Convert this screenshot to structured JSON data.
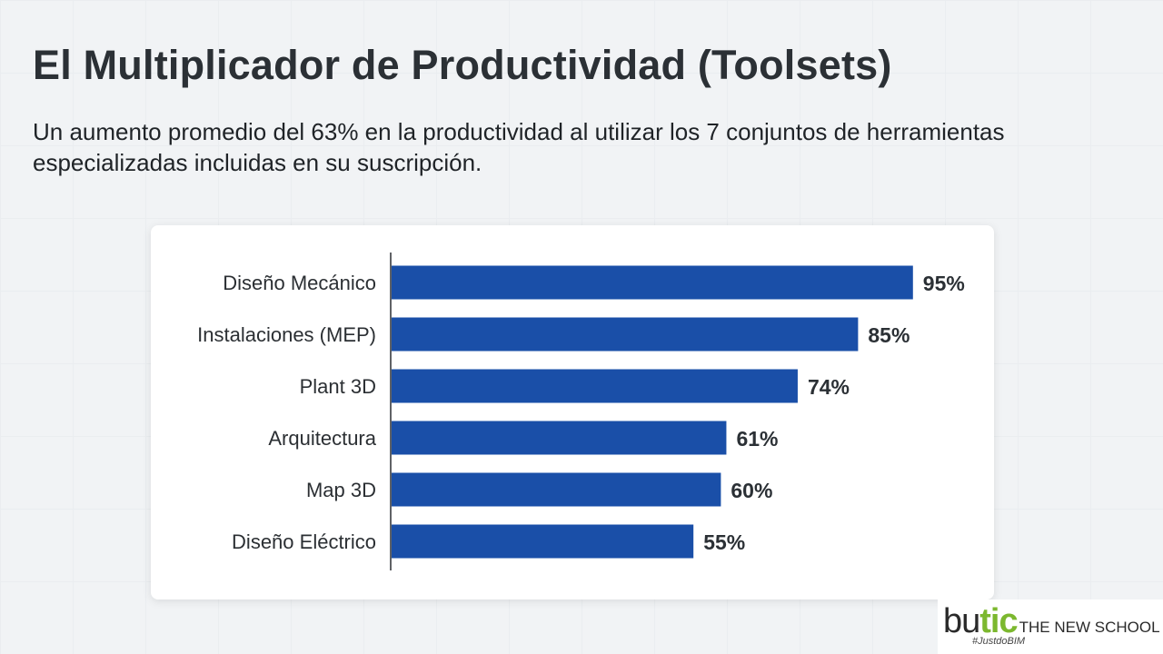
{
  "header": {
    "title": "El Multiplicador de Productividad (Toolsets)",
    "subtitle": "Un aumento promedio del 63% en la productividad al utilizar los 7 conjuntos de herramientas especializadas incluidas en su suscripción."
  },
  "chart_data": {
    "type": "bar",
    "orientation": "horizontal",
    "categories": [
      "Diseño Mecánico",
      "Instalaciones (MEP)",
      "Plant 3D",
      "Arquitectura",
      "Map 3D",
      "Diseño Eléctrico"
    ],
    "values": [
      95,
      85,
      74,
      61,
      60,
      55
    ],
    "value_labels": [
      "95%",
      "85%",
      "74%",
      "61%",
      "60%",
      "55%"
    ],
    "xlim": [
      0,
      100
    ],
    "grid": false,
    "bar_color": "#1a4fa8"
  },
  "logo": {
    "text_bu": "bu",
    "text_tic": "tic",
    "text_school": "THE NEW SCHOOL",
    "tagline": "#JustdoBIM",
    "tic_color": "#7cb82f"
  }
}
